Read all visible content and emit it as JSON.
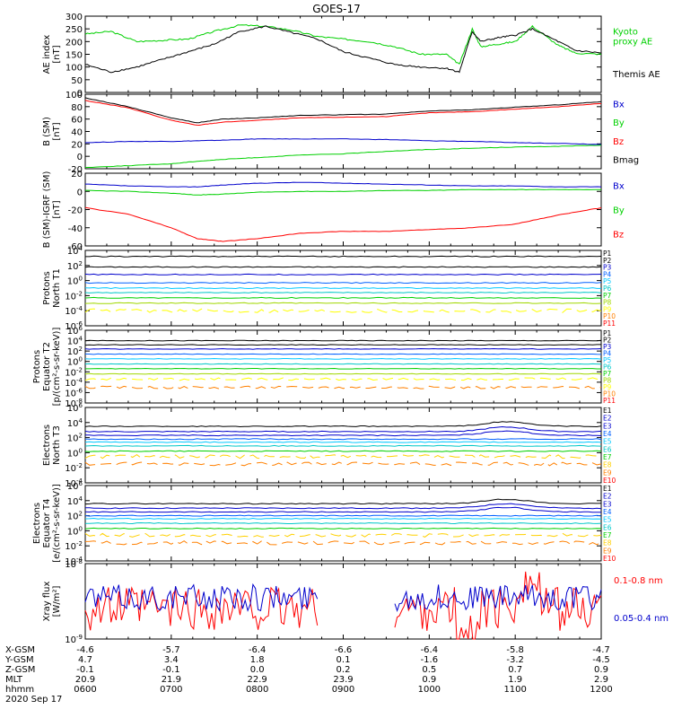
{
  "title": "GOES-17",
  "colors": {
    "black": "#000000",
    "green": "#00d000",
    "blue": "#0000cc",
    "red": "#ff0000",
    "p_levels": [
      "#000000",
      "#000000",
      "#0000cc",
      "#0060ff",
      "#00c8ff",
      "#00c8c8",
      "#00d000",
      "#a0d800",
      "#ffff00",
      "#ff8000",
      "#ff0000"
    ],
    "e_levels": [
      "#000000",
      "#0000cc",
      "#0000cc",
      "#0060ff",
      "#00c8ff",
      "#00c8c8",
      "#00d000",
      "#ffd000",
      "#ff8000",
      "#ff0000",
      "#ff0000"
    ]
  },
  "chart_data": [
    {
      "type": "line",
      "id": "ae",
      "ylabel": "AE index [nT]",
      "ylim": [
        0,
        300
      ],
      "yticks": [
        "0",
        "50",
        "100",
        "150",
        "200",
        "250",
        "300"
      ],
      "x": [
        6.0,
        6.3,
        6.6,
        6.9,
        7.2,
        7.5,
        7.8,
        8.1,
        8.4,
        8.7,
        9.0,
        9.3,
        9.6,
        9.9,
        10.2,
        10.35,
        10.5,
        10.6,
        10.8,
        11.0,
        11.2,
        11.5,
        11.7,
        12.0
      ],
      "series": [
        {
          "name": "Kyoto proxy AE",
          "label_lines": [
            "Kyoto",
            "proxy AE"
          ],
          "color": "#00d000",
          "values": [
            230,
            240,
            200,
            205,
            210,
            240,
            265,
            260,
            245,
            220,
            210,
            200,
            180,
            150,
            150,
            110,
            250,
            180,
            190,
            200,
            260,
            185,
            155,
            150
          ]
        },
        {
          "name": "Themis AE",
          "label_lines": [
            "Themis AE"
          ],
          "color": "#000000",
          "values": [
            110,
            80,
            100,
            130,
            160,
            190,
            240,
            260,
            235,
            210,
            160,
            135,
            110,
            100,
            95,
            80,
            240,
            200,
            215,
            225,
            250,
            200,
            165,
            155
          ]
        }
      ]
    },
    {
      "type": "line",
      "id": "bsm",
      "ylabel": "B (SM) [nT]",
      "ylim": [
        -20,
        100
      ],
      "yticks": [
        "-20",
        "0",
        "20",
        "40",
        "60",
        "80",
        "100"
      ],
      "x": [
        6.0,
        6.5,
        7.0,
        7.3,
        7.6,
        8.0,
        8.5,
        9.0,
        9.5,
        10.0,
        10.5,
        11.0,
        11.5,
        12.0
      ],
      "series": [
        {
          "name": "Bx",
          "label_lines": [
            "Bx"
          ],
          "color": "#0000cc",
          "values": [
            22,
            24,
            24,
            25,
            26,
            28,
            28,
            28,
            27,
            25,
            24,
            22,
            21,
            19
          ]
        },
        {
          "name": "By",
          "label_lines": [
            "By"
          ],
          "color": "#00d000",
          "values": [
            -18,
            -15,
            -12,
            -8,
            -5,
            -2,
            2,
            4,
            8,
            11,
            13,
            15,
            16,
            18
          ]
        },
        {
          "name": "Bz",
          "label_lines": [
            "Bz"
          ],
          "color": "#ff0000",
          "values": [
            90,
            78,
            58,
            50,
            55,
            58,
            62,
            63,
            64,
            70,
            72,
            76,
            80,
            85
          ]
        },
        {
          "name": "Bmag",
          "label_lines": [
            "Bmag"
          ],
          "color": "#000000",
          "values": [
            94,
            80,
            62,
            54,
            60,
            62,
            66,
            67,
            68,
            73,
            75,
            79,
            83,
            88
          ]
        }
      ]
    },
    {
      "type": "line",
      "id": "bigrf",
      "ylabel": "B (SM)-IGRF (SM) [nT]",
      "ylim": [
        -60,
        20
      ],
      "yticks": [
        "-60",
        "-40",
        "-20",
        "0",
        "20"
      ],
      "x": [
        6.0,
        6.5,
        7.0,
        7.3,
        7.6,
        8.0,
        8.5,
        9.0,
        9.5,
        10.0,
        10.5,
        11.0,
        11.5,
        12.0
      ],
      "series": [
        {
          "name": "Bx",
          "label_lines": [
            "Bx"
          ],
          "color": "#0000cc",
          "values": [
            8,
            6,
            5,
            5,
            7,
            9,
            10,
            9,
            8,
            7,
            6,
            6,
            5,
            5
          ]
        },
        {
          "name": "By",
          "label_lines": [
            "By"
          ],
          "color": "#00d000",
          "values": [
            1,
            0,
            -2,
            -4,
            -3,
            -1,
            0,
            0,
            1,
            1,
            2,
            2,
            2,
            2
          ]
        },
        {
          "name": "Bz",
          "label_lines": [
            "Bz"
          ],
          "color": "#ff0000",
          "values": [
            -18,
            -25,
            -40,
            -52,
            -55,
            -52,
            -46,
            -44,
            -44,
            -42,
            -40,
            -36,
            -26,
            -18
          ]
        }
      ]
    },
    {
      "type": "line",
      "id": "protons_north",
      "ylabel_lines": [
        "Protons",
        "North T1"
      ],
      "log": true,
      "ylim_exp": [
        -6,
        4
      ],
      "yticks": [
        "10^-6",
        "10^-4",
        "10^-2",
        "10^0",
        "10^2",
        "10^4"
      ],
      "channels": [
        "P1",
        "P2",
        "P3",
        "P4",
        "P5",
        "P6",
        "P7",
        "P8",
        "P9",
        "P10",
        "P11"
      ],
      "levels_exp": [
        3.2,
        1.8,
        0.8,
        -0.3,
        -1.0,
        -1.6,
        -2.3,
        -3.0,
        -4.0,
        null,
        null
      ]
    },
    {
      "type": "line",
      "id": "protons_equator",
      "ylabel_lines": [
        "Protons",
        "Equator T2",
        "[p/(cm²-s-sr-keV)]"
      ],
      "log": true,
      "ylim_exp": [
        -8,
        6
      ],
      "yticks": [
        "10^-8",
        "10^-6",
        "10^-4",
        "10^-2",
        "10^0",
        "10^2",
        "10^4",
        "10^6"
      ],
      "channels": [
        "P1",
        "P2",
        "P3",
        "P4",
        "P5",
        "P6",
        "P7",
        "P8",
        "P9",
        "P10",
        "P11"
      ],
      "levels_exp": [
        4.0,
        3.2,
        2.4,
        1.4,
        0.5,
        -0.5,
        -1.4,
        -2.4,
        -3.4,
        -5.0,
        null
      ]
    },
    {
      "type": "line",
      "id": "electrons_north",
      "ylabel_lines": [
        "Electrons",
        "North T3"
      ],
      "log": true,
      "ylim_exp": [
        -4,
        6
      ],
      "yticks": [
        "10^-4",
        "10^-2",
        "10^0",
        "10^2",
        "10^4",
        "10^6"
      ],
      "channels": [
        "E1",
        "E2",
        "E3",
        "E4",
        "E5",
        "E6",
        "E7",
        "E8",
        "E9",
        "E10"
      ],
      "levels_exp": [
        3.5,
        2.8,
        2.3,
        1.8,
        1.4,
        0.9,
        0.2,
        -0.5,
        -1.5,
        null
      ]
    },
    {
      "type": "line",
      "id": "electrons_equator",
      "ylabel_lines": [
        "Electrons",
        "Equator T4",
        "[e/(cm²-s-sr-keV)]"
      ],
      "log": true,
      "ylim_exp": [
        -4,
        6
      ],
      "yticks": [
        "10^-4",
        "10^-2",
        "10^0",
        "10^2",
        "10^4",
        "10^6"
      ],
      "channels": [
        "E1",
        "E2",
        "E3",
        "E4",
        "E5",
        "E6",
        "E7",
        "E8",
        "E9",
        "E10"
      ],
      "levels_exp": [
        3.6,
        3.0,
        2.5,
        2.0,
        1.6,
        1.0,
        0.3,
        -0.6,
        -1.6,
        null
      ]
    },
    {
      "type": "line",
      "id": "xray",
      "ylabel_lines": [
        "Xray flux",
        "[W/m²]"
      ],
      "log": true,
      "ylim_exp": [
        -9,
        -8
      ],
      "yticks": [
        "10^-9",
        "10^-8"
      ],
      "series": [
        {
          "name": "0.1-0.8 nm",
          "label_lines": [
            "0.1-0.8 nm"
          ],
          "color": "#ff0000"
        },
        {
          "name": "0.05-0.4 nm",
          "label_lines": [
            "0.05-0.4 nm"
          ],
          "color": "#0000cc"
        }
      ],
      "gap": [
        8.7,
        9.6
      ]
    }
  ],
  "x_axis": {
    "range": [
      6,
      12
    ],
    "rows": [
      {
        "label": "X-GSM",
        "values": [
          "-4.6",
          "-5.7",
          "-6.4",
          "-6.6",
          "-6.4",
          "-5.8",
          "-4.7"
        ]
      },
      {
        "label": "Y-GSM",
        "values": [
          "4.7",
          "3.4",
          "1.8",
          "0.1",
          "-1.6",
          "-3.2",
          "-4.5"
        ]
      },
      {
        "label": "Z-GSM",
        "values": [
          "-0.1",
          "-0.1",
          "0.0",
          "0.2",
          "0.5",
          "0.7",
          "0.9"
        ]
      },
      {
        "label": "MLT",
        "values": [
          "20.9",
          "21.9",
          "22.9",
          "23.9",
          "0.9",
          "1.9",
          "2.9"
        ]
      },
      {
        "label": "hhmm",
        "values": [
          "0600",
          "0700",
          "0800",
          "0900",
          "1000",
          "1100",
          "1200"
        ]
      }
    ],
    "date": "2020 Sep 17"
  }
}
